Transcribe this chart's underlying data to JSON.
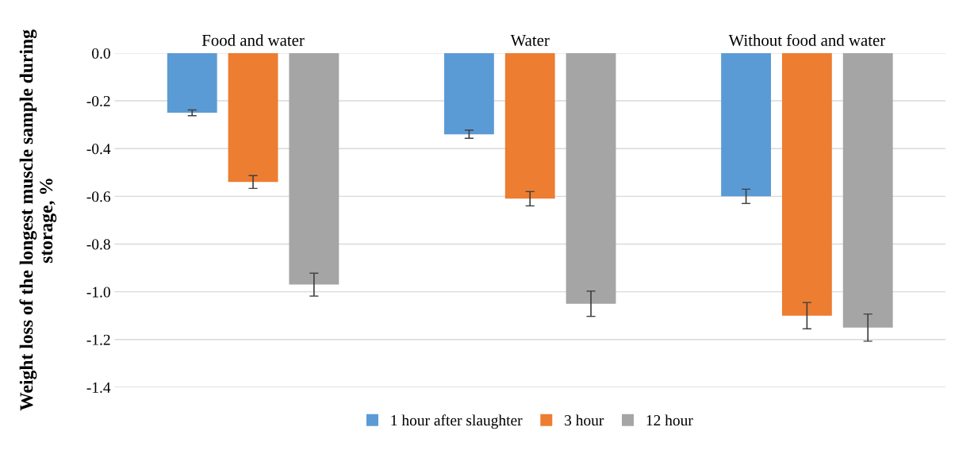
{
  "chart_data": {
    "type": "bar",
    "ylabel": "Weight loss of the longest muscle sample during storage, %",
    "categories": [
      "Food and water",
      "Water",
      "Without food and water"
    ],
    "series": [
      {
        "name": "1 hour after slaughter",
        "color": "#5b9bd5",
        "values": [
          -0.25,
          -0.34,
          -0.6
        ],
        "errors": [
          0.012,
          0.017,
          0.03
        ]
      },
      {
        "name": "3 hour",
        "color": "#ed7d31",
        "values": [
          -0.54,
          -0.61,
          -1.1
        ],
        "errors": [
          0.027,
          0.03,
          0.055
        ]
      },
      {
        "name": "12 hour",
        "color": "#a5a5a5",
        "values": [
          -0.97,
          -1.05,
          -1.15
        ],
        "errors": [
          0.048,
          0.053,
          0.057
        ]
      }
    ],
    "ylim": [
      -1.4,
      0
    ],
    "yticks": [
      {
        "value": 0,
        "label": "0.0"
      },
      {
        "value": -0.2,
        "label": "-0.2"
      },
      {
        "value": -0.4,
        "label": "-0.4"
      },
      {
        "value": -0.6,
        "label": "-0.6"
      },
      {
        "value": -0.8,
        "label": "-0.8"
      },
      {
        "value": -1.0,
        "label": "-1.0"
      },
      {
        "value": -1.2,
        "label": "-1.2"
      },
      {
        "value": -1.4,
        "label": "-1.4"
      }
    ],
    "grid": "y",
    "legend": "bottom"
  }
}
